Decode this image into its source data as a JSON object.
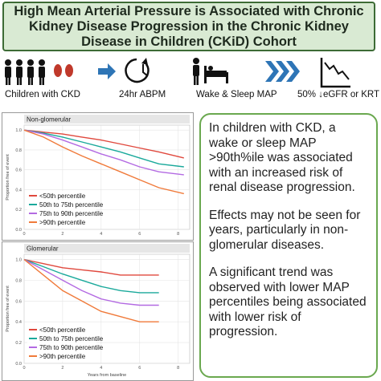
{
  "header": {
    "title": "High Mean Arterial Pressure is Associated with Chronic Kidney Disease Progression in the Chronic Kidney Disease in Children (CKiD) Cohort"
  },
  "steps": [
    "Children with CKD",
    "24hr ABPM",
    "Wake & Sleep MAP",
    "50% ↓eGFR or KRT"
  ],
  "summary": [
    "In children with CKD, a wake or sleep MAP >90th%ile was associated with an increased risk of renal disease progression.",
    "Effects may not be seen for years, particularly in non-glomerular diseases.",
    "A significant trend was observed with lower MAP percentiles being associated with lower risk of progression."
  ],
  "chart_data": [
    {
      "type": "line",
      "title": "Non-glomerular",
      "y_label": "Proportion free of event",
      "legend": "lower left",
      "grid": true,
      "x": [
        0,
        1,
        2,
        3,
        4,
        5,
        6,
        7,
        8.3
      ],
      "xlim": [
        0,
        8.6
      ],
      "xticks": [
        0,
        2,
        4,
        6,
        8
      ],
      "ylim": [
        0,
        1.05
      ],
      "yticks": [
        {
          "value": 0,
          "label": "0.0"
        },
        {
          "value": 0.2,
          "label": "0.2"
        },
        {
          "value": 0.4,
          "label": "0.4"
        },
        {
          "value": 0.6,
          "label": "0.6"
        },
        {
          "value": 0.8,
          "label": "0.8"
        },
        {
          "value": 1,
          "label": "1.0"
        }
      ],
      "series": [
        {
          "name": "<50th percentile",
          "color": "#e0483d",
          "values": [
            1,
            0.98,
            0.96,
            0.93,
            0.9,
            0.86,
            0.82,
            0.78,
            0.72
          ]
        },
        {
          "name": "50th to 75th percentile",
          "color": "#1aa99b",
          "values": [
            1,
            0.97,
            0.93,
            0.88,
            0.83,
            0.78,
            0.72,
            0.66,
            0.63
          ]
        },
        {
          "name": "75th to 90th percentile",
          "color": "#b36ae2",
          "values": [
            1,
            0.96,
            0.9,
            0.83,
            0.76,
            0.7,
            0.63,
            0.58,
            0.55
          ]
        },
        {
          "name": ">90th percentile",
          "color": "#f07a3a",
          "values": [
            1,
            0.93,
            0.83,
            0.74,
            0.66,
            0.58,
            0.5,
            0.42,
            0.36
          ]
        }
      ]
    },
    {
      "type": "line",
      "title": "Glomerular",
      "y_label": "Proportion free of event",
      "x_label": "Years from baseline",
      "legend": "lower left",
      "grid": true,
      "x": [
        0,
        1,
        2,
        3,
        4,
        5,
        6,
        7
      ],
      "xlim": [
        0,
        8.6
      ],
      "xticks": [
        0,
        2,
        4,
        6,
        8
      ],
      "ylim": [
        0,
        1.05
      ],
      "yticks": [
        {
          "value": 0,
          "label": "0.0"
        },
        {
          "value": 0.2,
          "label": "0.2"
        },
        {
          "value": 0.4,
          "label": "0.4"
        },
        {
          "value": 0.6,
          "label": "0.6"
        },
        {
          "value": 0.8,
          "label": "0.8"
        },
        {
          "value": 1,
          "label": "1.0"
        }
      ],
      "series": [
        {
          "name": "<50th percentile",
          "color": "#e0483d",
          "values": [
            1,
            0.96,
            0.92,
            0.9,
            0.88,
            0.85,
            0.85,
            0.85
          ]
        },
        {
          "name": "50th to 75th percentile",
          "color": "#1aa99b",
          "values": [
            1,
            0.93,
            0.86,
            0.8,
            0.74,
            0.7,
            0.68,
            0.68
          ]
        },
        {
          "name": "75th to 90th percentile",
          "color": "#b36ae2",
          "values": [
            1,
            0.9,
            0.8,
            0.7,
            0.62,
            0.58,
            0.56,
            0.56
          ]
        },
        {
          "name": ">90th percentile",
          "color": "#f07a3a",
          "values": [
            1,
            0.85,
            0.7,
            0.6,
            0.5,
            0.45,
            0.4,
            0.4
          ]
        }
      ]
    }
  ]
}
